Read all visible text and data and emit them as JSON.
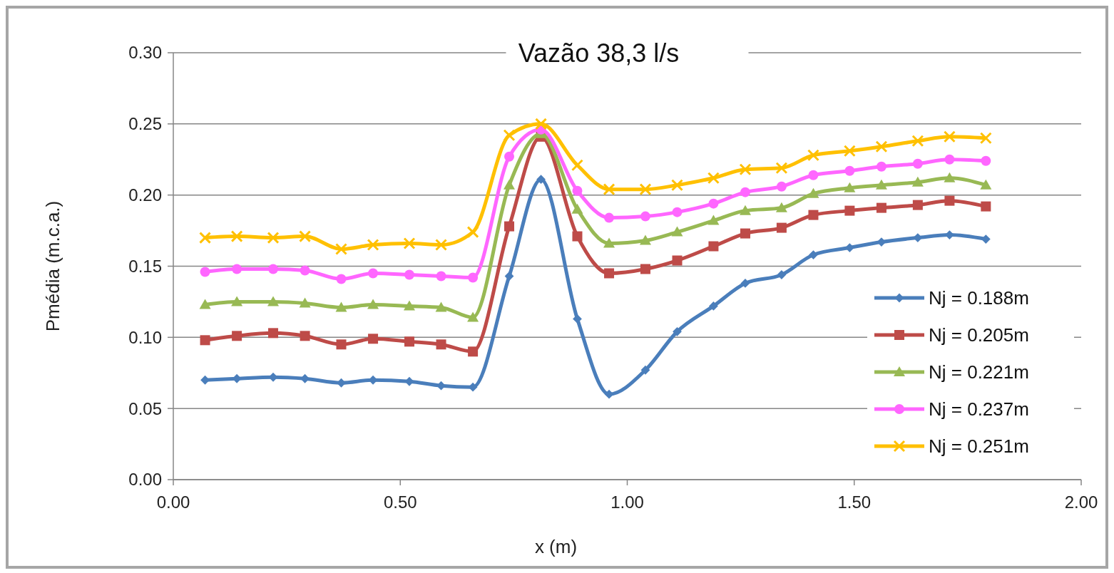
{
  "chart_data": {
    "type": "line",
    "title": "Vazão 38,3 l/s",
    "xlabel": "x (m)",
    "ylabel": "Pmédia (m.c.a.)",
    "x": [
      0.07,
      0.14,
      0.22,
      0.29,
      0.37,
      0.44,
      0.52,
      0.59,
      0.66,
      0.74,
      0.81,
      0.89,
      0.96,
      1.04,
      1.11,
      1.19,
      1.26,
      1.34,
      1.41,
      1.49,
      1.56,
      1.64,
      1.71,
      1.79
    ],
    "xlim": [
      0,
      2
    ],
    "xticks": [
      {
        "value": 0,
        "label": "0.00"
      },
      {
        "value": 0.5,
        "label": "0.50"
      },
      {
        "value": 1,
        "label": "1.00"
      },
      {
        "value": 1.5,
        "label": "1.50"
      },
      {
        "value": 2,
        "label": "2.00"
      }
    ],
    "ylim": [
      0,
      0.3
    ],
    "yticks": [
      {
        "value": 0,
        "label": "0.00"
      },
      {
        "value": 0.05,
        "label": "0.05"
      },
      {
        "value": 0.1,
        "label": "0.10"
      },
      {
        "value": 0.15,
        "label": "0.15"
      },
      {
        "value": 0.2,
        "label": "0.20"
      },
      {
        "value": 0.25,
        "label": "0.25"
      },
      {
        "value": 0.3,
        "label": "0.30"
      }
    ],
    "grid": "y",
    "legend": "bottom right",
    "series": [
      {
        "name": "Nj = 0.188m",
        "color": "#4a7ebb",
        "marker": "diamond",
        "values": [
          0.07,
          0.071,
          0.072,
          0.071,
          0.068,
          0.07,
          0.069,
          0.066,
          0.065,
          0.143,
          0.211,
          0.113,
          0.06,
          0.077,
          0.104,
          0.122,
          0.138,
          0.144,
          0.158,
          0.163,
          0.167,
          0.17,
          0.172,
          0.169
        ]
      },
      {
        "name": "Nj = 0.205m",
        "color": "#be4b48",
        "marker": "square",
        "values": [
          0.098,
          0.101,
          0.103,
          0.101,
          0.095,
          0.099,
          0.097,
          0.095,
          0.09,
          0.178,
          0.241,
          0.171,
          0.145,
          0.148,
          0.154,
          0.164,
          0.173,
          0.177,
          0.186,
          0.189,
          0.191,
          0.193,
          0.196,
          0.192
        ]
      },
      {
        "name": "Nj = 0.221m",
        "color": "#98b954",
        "marker": "triangle",
        "values": [
          0.123,
          0.125,
          0.125,
          0.124,
          0.121,
          0.123,
          0.122,
          0.121,
          0.114,
          0.207,
          0.243,
          0.19,
          0.166,
          0.168,
          0.174,
          0.182,
          0.189,
          0.191,
          0.201,
          0.205,
          0.207,
          0.209,
          0.212,
          0.207
        ]
      },
      {
        "name": "Nj = 0.237m",
        "color": "#ff66ff",
        "marker": "circle",
        "values": [
          0.146,
          0.148,
          0.148,
          0.147,
          0.141,
          0.145,
          0.144,
          0.143,
          0.142,
          0.227,
          0.246,
          0.203,
          0.184,
          0.185,
          0.188,
          0.194,
          0.202,
          0.206,
          0.214,
          0.217,
          0.22,
          0.222,
          0.225,
          0.224
        ]
      },
      {
        "name": "Nj = 0.251m",
        "color": "#ffc000",
        "marker": "cross",
        "values": [
          0.17,
          0.171,
          0.17,
          0.171,
          0.162,
          0.165,
          0.166,
          0.165,
          0.174,
          0.242,
          0.25,
          0.221,
          0.204,
          0.204,
          0.207,
          0.212,
          0.218,
          0.219,
          0.228,
          0.231,
          0.234,
          0.238,
          0.241,
          0.24
        ]
      }
    ]
  }
}
